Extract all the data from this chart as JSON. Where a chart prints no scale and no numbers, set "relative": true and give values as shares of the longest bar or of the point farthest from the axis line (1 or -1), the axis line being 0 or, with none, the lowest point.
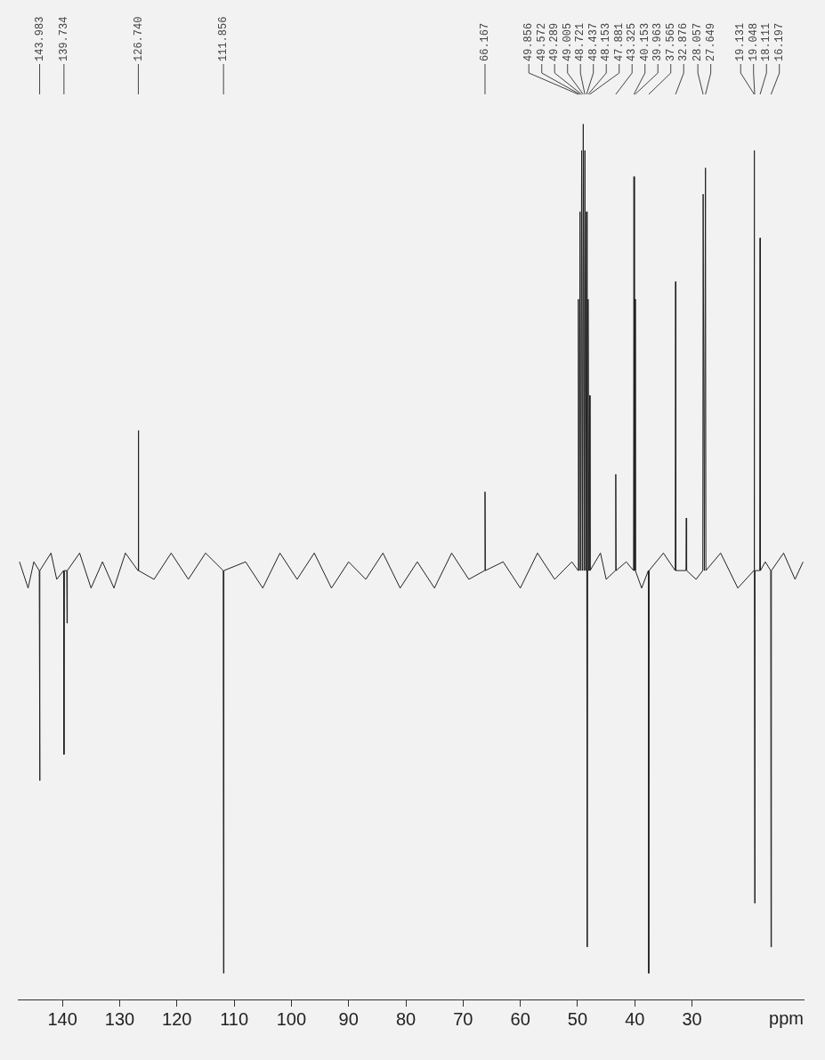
{
  "chart_data": {
    "type": "line",
    "relative": true,
    "xlabel": "ppm",
    "color": "#222222",
    "xlim": [
      147.8,
      10.5
    ],
    "xticks": [
      140,
      130,
      120,
      110,
      100,
      90,
      80,
      70,
      60,
      50,
      40,
      30
    ],
    "x": [
      147.5,
      146,
      145,
      144.05,
      143.983,
      143.92,
      142,
      141,
      139.8,
      139.734,
      139.67,
      139.25,
      139.2,
      139.15,
      137,
      135,
      133,
      131,
      129,
      126.8,
      126.74,
      126.68,
      124,
      121,
      118,
      115,
      111.92,
      111.856,
      111.79,
      108,
      105,
      102,
      99,
      96,
      93,
      90,
      87,
      84,
      81,
      78,
      75,
      72,
      69,
      66.23,
      66.167,
      66.1,
      63,
      60,
      57,
      54,
      51,
      49.9,
      49.856,
      49.71,
      49.572,
      49.43,
      49.289,
      49.15,
      49.005,
      48.86,
      48.721,
      48.58,
      48.437,
      48.36,
      48.3,
      48.24,
      48.153,
      48.02,
      47.881,
      47.82,
      46,
      45,
      43.39,
      43.325,
      43.26,
      41.5,
      40.22,
      40.153,
      40.06,
      39.963,
      39.9,
      38.8,
      37.63,
      37.565,
      37.5,
      35,
      32.94,
      32.876,
      32.81,
      31.06,
      31.0,
      30.94,
      29.3,
      28.12,
      28.057,
      27.85,
      27.649,
      27.58,
      25,
      22,
      19.2,
      19.131,
      19.09,
      19.048,
      18.99,
      18.17,
      18.111,
      18.05,
      17.2,
      16.26,
      16.197,
      16.13,
      14,
      12,
      10.6
    ],
    "values": [
      0.5,
      0.47,
      0.5,
      0.49,
      0.25,
      0.49,
      0.51,
      0.48,
      0.49,
      0.28,
      0.49,
      0.49,
      0.43,
      0.49,
      0.51,
      0.47,
      0.5,
      0.47,
      0.51,
      0.49,
      0.65,
      0.49,
      0.48,
      0.51,
      0.48,
      0.51,
      0.49,
      0.03,
      0.49,
      0.5,
      0.47,
      0.51,
      0.48,
      0.51,
      0.47,
      0.5,
      0.48,
      0.51,
      0.47,
      0.5,
      0.47,
      0.51,
      0.48,
      0.49,
      0.58,
      0.49,
      0.5,
      0.47,
      0.51,
      0.48,
      0.5,
      0.49,
      0.8,
      0.49,
      0.9,
      0.49,
      0.97,
      0.49,
      1,
      0.49,
      0.97,
      0.49,
      0.9,
      0.49,
      0.06,
      0.49,
      0.8,
      0.49,
      0.69,
      0.49,
      0.51,
      0.48,
      0.49,
      0.6,
      0.49,
      0.5,
      0.49,
      0.94,
      0.49,
      0.8,
      0.49,
      0.47,
      0.49,
      0.03,
      0.49,
      0.51,
      0.49,
      0.82,
      0.49,
      0.49,
      0.55,
      0.49,
      0.48,
      0.49,
      0.92,
      0.49,
      0.95,
      0.49,
      0.51,
      0.47,
      0.49,
      0.97,
      0.49,
      0.11,
      0.49,
      0.49,
      0.87,
      0.49,
      0.5,
      0.49,
      0.06,
      0.49,
      0.51,
      0.48,
      0.5
    ],
    "annotations": [
      {
        "text": "143.983",
        "x": 143.983
      },
      {
        "text": "139.734",
        "x": 139.734
      },
      {
        "text": "126.740",
        "x": 126.74
      },
      {
        "text": "111.856",
        "x": 111.856
      },
      {
        "text": "66.167",
        "x": 66.167
      },
      {
        "text": "49.856",
        "x": 49.856
      },
      {
        "text": "49.572",
        "x": 49.572
      },
      {
        "text": "49.289",
        "x": 49.289
      },
      {
        "text": "49.005",
        "x": 49.005
      },
      {
        "text": "48.721",
        "x": 48.721
      },
      {
        "text": "48.437",
        "x": 48.437
      },
      {
        "text": "48.153",
        "x": 48.153
      },
      {
        "text": "47.881",
        "x": 47.881
      },
      {
        "text": "43.325",
        "x": 43.325
      },
      {
        "text": "40.153",
        "x": 40.153
      },
      {
        "text": "39.963",
        "x": 39.963
      },
      {
        "text": "37.565",
        "x": 37.565
      },
      {
        "text": "32.876",
        "x": 32.876
      },
      {
        "text": "28.057",
        "x": 28.057
      },
      {
        "text": "27.649",
        "x": 27.649
      },
      {
        "text": "19.131",
        "x": 19.131
      },
      {
        "text": "19.048",
        "x": 19.048
      },
      {
        "text": "18.111",
        "x": 18.111
      },
      {
        "text": "16.197",
        "x": 16.197
      }
    ]
  }
}
